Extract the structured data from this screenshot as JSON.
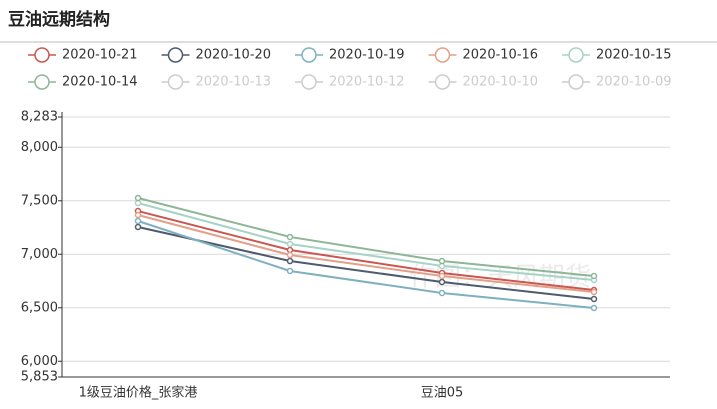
{
  "chart_data": {
    "type": "line",
    "title": "豆油远期结构",
    "watermark": "作图：天风期货",
    "categories": [
      "1级豆油价格_张家港",
      null,
      "豆油05",
      null
    ],
    "ylim": [
      5853,
      8283
    ],
    "yticks": [
      {
        "value": 5853,
        "label": "5,853"
      },
      {
        "value": 6000,
        "label": "6,000"
      },
      {
        "value": 6500,
        "label": "6,500"
      },
      {
        "value": 7000,
        "label": "7,000"
      },
      {
        "value": 7500,
        "label": "7,500"
      },
      {
        "value": 8000,
        "label": "8,000"
      },
      {
        "value": 8283,
        "label": "8,283"
      }
    ],
    "grid": true,
    "series": [
      {
        "name": "2020-10-21",
        "color": "#c9574f",
        "values": [
          7404,
          7040,
          6825,
          6666
        ]
      },
      {
        "name": "2020-10-20",
        "color": "#4d5b6c",
        "values": [
          7255,
          6937,
          6741,
          6582
        ]
      },
      {
        "name": "2020-10-19",
        "color": "#7eb0c0",
        "values": [
          7311,
          6844,
          6638,
          6498
        ]
      },
      {
        "name": "2020-10-16",
        "color": "#e49f88",
        "values": [
          7367,
          6993,
          6797,
          6647
        ]
      },
      {
        "name": "2020-10-15",
        "color": "#a6d3c6",
        "values": [
          7479,
          7096,
          6891,
          6760
        ]
      },
      {
        "name": "2020-10-14",
        "color": "#8db596",
        "values": [
          7526,
          7162,
          6937,
          6797
        ]
      },
      {
        "name": "2020-10-13",
        "color": "#cccccc",
        "hidden": true,
        "values": [
          null,
          null,
          null,
          null
        ]
      },
      {
        "name": "2020-10-12",
        "color": "#cccccc",
        "hidden": true,
        "values": [
          null,
          null,
          null,
          null
        ]
      },
      {
        "name": "2020-10-10",
        "color": "#cccccc",
        "hidden": true,
        "values": [
          null,
          null,
          null,
          null
        ]
      },
      {
        "name": "2020-10-09",
        "color": "#cccccc",
        "hidden": true,
        "values": [
          null,
          null,
          null,
          null
        ]
      }
    ]
  }
}
